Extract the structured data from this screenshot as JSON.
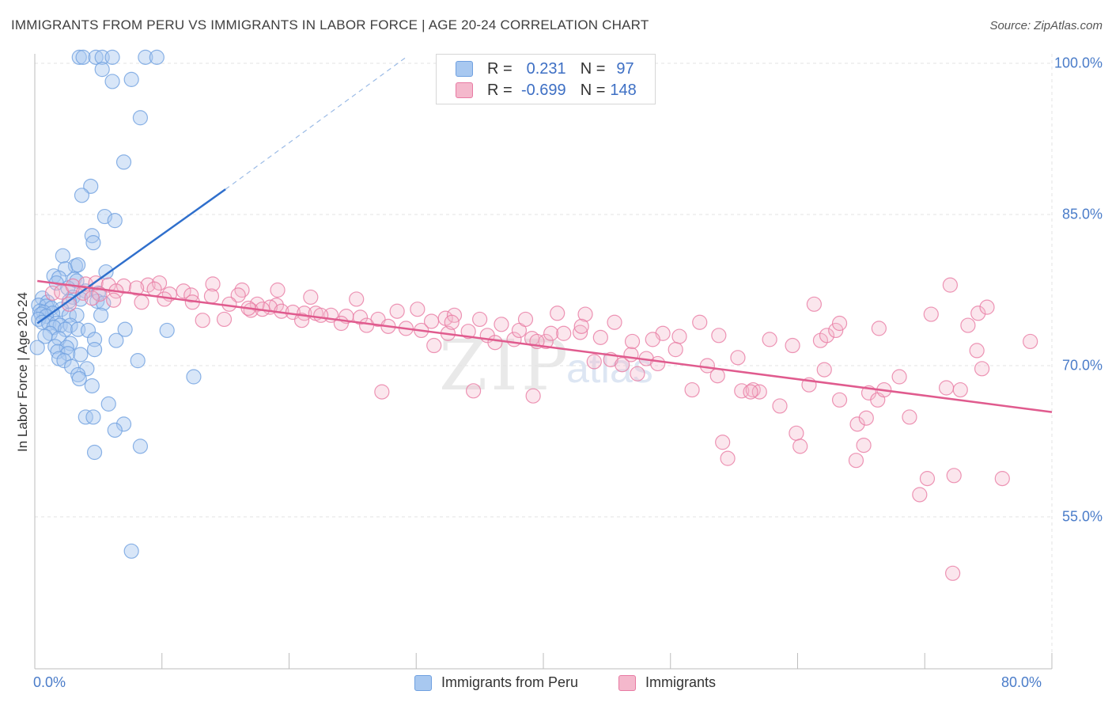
{
  "title": "IMMIGRANTS FROM PERU VS IMMIGRANTS IN LABOR FORCE | AGE 20-24 CORRELATION CHART",
  "source": "Source: ZipAtlas.com",
  "watermark": {
    "zip": "ZIP",
    "atlas": "atlas"
  },
  "legend_top": {
    "rows": [
      {
        "r_label": "R =",
        "r_value": "0.231",
        "n_label": "N =",
        "n_value": "97",
        "color": "#a8c8f0"
      },
      {
        "r_label": "R =",
        "r_value": "-0.699",
        "n_label": "N =",
        "n_value": "148",
        "color": "#f4b8cc"
      }
    ]
  },
  "legend_bottom": [
    {
      "label": "Immigrants from Peru",
      "color": "#a8c8f0"
    },
    {
      "label": "Immigrants",
      "color": "#f4b8cc"
    }
  ],
  "chart_data": {
    "type": "scatter",
    "title": "IMMIGRANTS FROM PERU VS IMMIGRANTS IN LABOR FORCE | AGE 20-24 CORRELATION CHART",
    "ylabel": "In Labor Force | Age 20-24",
    "xlabel": "",
    "xlim": [
      0,
      80
    ],
    "ylim": [
      40,
      101.5
    ],
    "x_tick_labels": [
      {
        "value": 0,
        "label": "0.0%"
      },
      {
        "value": 80,
        "label": "80.0%"
      }
    ],
    "y_tick_labels": [
      {
        "value": 100,
        "label": "100.0%"
      },
      {
        "value": 85,
        "label": "85.0%"
      },
      {
        "value": 70,
        "label": "70.0%"
      },
      {
        "value": 55,
        "label": "55.0%"
      }
    ],
    "grid": true,
    "series": [
      {
        "name": "Immigrants from Peru",
        "color": "#6fa0e0",
        "fill": "#a8c8f0",
        "trend": {
          "x": [
            0.2,
            15.0
          ],
          "y": [
            74.2,
            87.5
          ],
          "dash_to": [
            29.2,
            100.6
          ]
        },
        "points": [
          [
            3.5,
            100.6
          ],
          [
            3.8,
            100.6
          ],
          [
            4.8,
            100.6
          ],
          [
            5.3,
            100.6
          ],
          [
            6.1,
            100.6
          ],
          [
            8.7,
            100.6
          ],
          [
            9.6,
            100.6
          ],
          [
            5.3,
            99.4
          ],
          [
            6.1,
            98.2
          ],
          [
            7.6,
            98.4
          ],
          [
            8.3,
            94.6
          ],
          [
            7.0,
            90.2
          ],
          [
            4.4,
            87.8
          ],
          [
            3.7,
            86.9
          ],
          [
            5.5,
            84.8
          ],
          [
            6.3,
            84.4
          ],
          [
            4.5,
            82.9
          ],
          [
            4.6,
            82.2
          ],
          [
            2.2,
            80.9
          ],
          [
            3.2,
            79.9
          ],
          [
            2.4,
            79.6
          ],
          [
            3.4,
            80.0
          ],
          [
            5.6,
            79.3
          ],
          [
            1.5,
            78.9
          ],
          [
            1.9,
            78.7
          ],
          [
            3.1,
            78.6
          ],
          [
            3.3,
            78.4
          ],
          [
            1.7,
            78.2
          ],
          [
            2.6,
            77.7
          ],
          [
            4.0,
            77.4
          ],
          [
            5.0,
            77.2
          ],
          [
            3.0,
            76.8
          ],
          [
            3.6,
            76.6
          ],
          [
            2.7,
            76.4
          ],
          [
            4.9,
            76.4
          ],
          [
            5.4,
            76.2
          ],
          [
            0.6,
            76.7
          ],
          [
            1.0,
            76.3
          ],
          [
            0.3,
            76.0
          ],
          [
            0.9,
            75.9
          ],
          [
            1.3,
            75.7
          ],
          [
            2.1,
            75.6
          ],
          [
            0.4,
            75.4
          ],
          [
            0.7,
            75.3
          ],
          [
            1.4,
            75.2
          ],
          [
            0.5,
            75.1
          ],
          [
            0.9,
            74.9
          ],
          [
            2.7,
            75.0
          ],
          [
            3.3,
            75.0
          ],
          [
            5.2,
            75.0
          ],
          [
            0.3,
            74.6
          ],
          [
            0.6,
            74.3
          ],
          [
            1.1,
            74.2
          ],
          [
            1.7,
            74.2
          ],
          [
            2.0,
            74.0
          ],
          [
            2.8,
            74.0
          ],
          [
            1.5,
            73.8
          ],
          [
            2.4,
            73.6
          ],
          [
            3.4,
            73.6
          ],
          [
            4.2,
            73.5
          ],
          [
            7.1,
            73.6
          ],
          [
            10.4,
            73.5
          ],
          [
            1.2,
            73.2
          ],
          [
            0.8,
            72.9
          ],
          [
            1.9,
            72.7
          ],
          [
            4.7,
            72.6
          ],
          [
            6.4,
            72.5
          ],
          [
            2.8,
            72.2
          ],
          [
            1.6,
            71.9
          ],
          [
            2.5,
            71.8
          ],
          [
            4.7,
            71.6
          ],
          [
            1.8,
            71.4
          ],
          [
            2.6,
            71.2
          ],
          [
            3.6,
            71.1
          ],
          [
            0.2,
            71.8
          ],
          [
            1.9,
            70.7
          ],
          [
            2.3,
            70.5
          ],
          [
            8.1,
            70.5
          ],
          [
            2.9,
            69.9
          ],
          [
            4.1,
            69.7
          ],
          [
            3.4,
            69.1
          ],
          [
            3.5,
            68.7
          ],
          [
            12.5,
            68.9
          ],
          [
            4.5,
            68.0
          ],
          [
            5.8,
            66.2
          ],
          [
            4.0,
            64.9
          ],
          [
            4.6,
            64.9
          ],
          [
            7.0,
            64.2
          ],
          [
            6.3,
            63.6
          ],
          [
            8.3,
            62.0
          ],
          [
            4.7,
            61.4
          ],
          [
            7.6,
            51.6
          ]
        ]
      },
      {
        "name": "Immigrants",
        "color": "#e87aa3",
        "fill": "#f4b8cc",
        "trend": {
          "x": [
            0.2,
            80.0
          ],
          "y": [
            78.4,
            65.4
          ]
        },
        "points": [
          [
            1.4,
            77.2
          ],
          [
            2.1,
            77.3
          ],
          [
            3.0,
            77.9
          ],
          [
            4.0,
            78.1
          ],
          [
            4.8,
            78.2
          ],
          [
            5.8,
            78.0
          ],
          [
            7.0,
            77.9
          ],
          [
            8.9,
            78.0
          ],
          [
            9.8,
            78.2
          ],
          [
            11.7,
            77.4
          ],
          [
            14.0,
            78.1
          ],
          [
            16.3,
            77.5
          ],
          [
            19.1,
            77.5
          ],
          [
            21.7,
            76.8
          ],
          [
            3.8,
            77.2
          ],
          [
            5.1,
            77.1
          ],
          [
            6.4,
            77.4
          ],
          [
            8.0,
            77.7
          ],
          [
            9.4,
            77.6
          ],
          [
            10.6,
            77.1
          ],
          [
            12.3,
            77.0
          ],
          [
            13.9,
            76.9
          ],
          [
            16.0,
            77.0
          ],
          [
            2.7,
            76.1
          ],
          [
            4.5,
            76.7
          ],
          [
            6.2,
            76.5
          ],
          [
            8.4,
            76.3
          ],
          [
            10.2,
            76.6
          ],
          [
            12.4,
            76.3
          ],
          [
            15.3,
            76.1
          ],
          [
            17.5,
            76.1
          ],
          [
            19.0,
            76.0
          ],
          [
            18.5,
            75.8
          ],
          [
            17.0,
            75.5
          ],
          [
            19.4,
            75.4
          ],
          [
            20.3,
            75.3
          ],
          [
            21.2,
            75.2
          ],
          [
            22.1,
            75.2
          ],
          [
            23.3,
            75.0
          ],
          [
            24.5,
            74.9
          ],
          [
            25.6,
            74.8
          ],
          [
            27.0,
            74.6
          ],
          [
            13.2,
            74.5
          ],
          [
            14.9,
            74.6
          ],
          [
            16.8,
            75.7
          ],
          [
            17.9,
            75.6
          ],
          [
            21.0,
            74.5
          ],
          [
            22.5,
            75.0
          ],
          [
            24.1,
            74.2
          ],
          [
            26.1,
            74.0
          ],
          [
            27.8,
            73.9
          ],
          [
            29.2,
            73.7
          ],
          [
            28.5,
            75.4
          ],
          [
            30.4,
            73.5
          ],
          [
            31.2,
            74.4
          ],
          [
            32.3,
            74.7
          ],
          [
            33.0,
            75.0
          ],
          [
            32.5,
            73.2
          ],
          [
            34.1,
            73.4
          ],
          [
            35.6,
            73.0
          ],
          [
            36.2,
            72.3
          ],
          [
            37.7,
            72.6
          ],
          [
            38.1,
            73.5
          ],
          [
            38.6,
            74.6
          ],
          [
            39.1,
            72.7
          ],
          [
            40.2,
            72.4
          ],
          [
            40.6,
            73.2
          ],
          [
            41.6,
            73.2
          ],
          [
            42.9,
            73.3
          ],
          [
            43.3,
            75.1
          ],
          [
            44.5,
            72.8
          ],
          [
            44.0,
            70.4
          ],
          [
            45.3,
            70.6
          ],
          [
            46.2,
            70.1
          ],
          [
            46.9,
            71.1
          ],
          [
            47.4,
            69.2
          ],
          [
            47.0,
            72.4
          ],
          [
            48.1,
            70.7
          ],
          [
            49.0,
            70.2
          ],
          [
            49.4,
            73.2
          ],
          [
            50.7,
            72.9
          ],
          [
            52.3,
            74.3
          ],
          [
            52.9,
            70.0
          ],
          [
            53.7,
            69.0
          ],
          [
            51.7,
            67.6
          ],
          [
            55.6,
            67.5
          ],
          [
            54.1,
            62.4
          ],
          [
            54.5,
            60.8
          ],
          [
            56.5,
            67.6
          ],
          [
            57.0,
            67.4
          ],
          [
            57.8,
            72.6
          ],
          [
            59.6,
            72.0
          ],
          [
            58.6,
            66.0
          ],
          [
            59.9,
            63.3
          ],
          [
            60.2,
            62.0
          ],
          [
            60.9,
            68.1
          ],
          [
            61.3,
            76.1
          ],
          [
            61.8,
            72.5
          ],
          [
            62.3,
            73.0
          ],
          [
            63.0,
            73.5
          ],
          [
            63.3,
            74.2
          ],
          [
            62.1,
            69.6
          ],
          [
            63.3,
            66.6
          ],
          [
            64.7,
            64.2
          ],
          [
            65.4,
            64.8
          ],
          [
            64.6,
            60.6
          ],
          [
            65.2,
            62.1
          ],
          [
            65.6,
            67.3
          ],
          [
            66.3,
            66.6
          ],
          [
            66.4,
            73.7
          ],
          [
            66.8,
            67.6
          ],
          [
            68.0,
            68.9
          ],
          [
            68.8,
            64.9
          ],
          [
            69.6,
            57.2
          ],
          [
            70.2,
            58.8
          ],
          [
            70.5,
            75.1
          ],
          [
            71.7,
            67.8
          ],
          [
            72.3,
            59.1
          ],
          [
            72.8,
            67.6
          ],
          [
            72.0,
            78.0
          ],
          [
            73.4,
            74.0
          ],
          [
            74.2,
            75.2
          ],
          [
            74.1,
            71.5
          ],
          [
            74.5,
            69.7
          ],
          [
            74.9,
            75.8
          ],
          [
            76.1,
            58.8
          ],
          [
            72.2,
            49.4
          ],
          [
            78.3,
            72.4
          ],
          [
            25.3,
            76.6
          ],
          [
            27.3,
            67.4
          ],
          [
            30.1,
            75.6
          ],
          [
            31.4,
            72.0
          ],
          [
            32.8,
            74.3
          ],
          [
            35.0,
            74.6
          ],
          [
            36.7,
            74.1
          ],
          [
            39.5,
            72.4
          ],
          [
            41.1,
            75.2
          ],
          [
            43.0,
            73.9
          ],
          [
            45.6,
            74.3
          ],
          [
            39.2,
            67.0
          ],
          [
            34.5,
            67.5
          ],
          [
            48.6,
            72.6
          ],
          [
            50.4,
            71.6
          ],
          [
            56.3,
            67.4
          ],
          [
            53.8,
            73.0
          ],
          [
            55.3,
            70.8
          ]
        ]
      }
    ]
  }
}
